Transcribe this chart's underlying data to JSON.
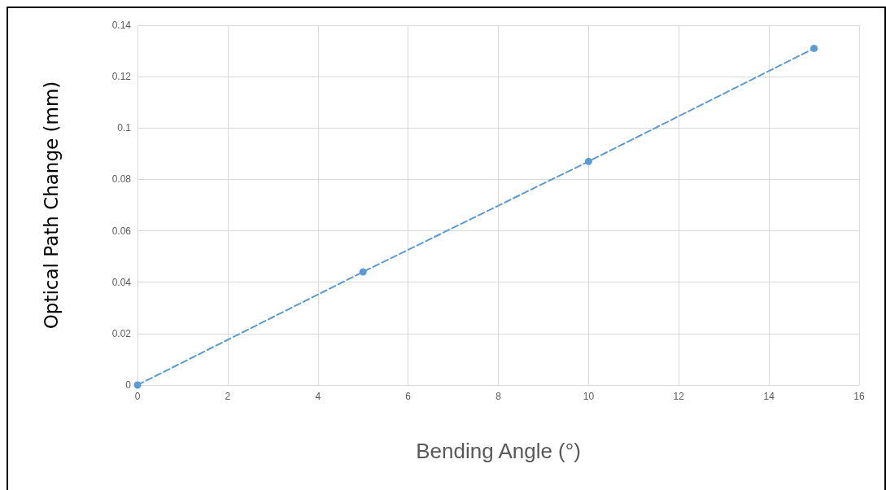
{
  "chart_data": {
    "type": "line",
    "xlabel": "Bending Angle (°)",
    "ylabel": "Optical Path Change (mm)",
    "x": [
      0,
      5,
      10,
      15
    ],
    "series": [
      {
        "color": "#5b9bd5",
        "values": [
          0,
          0.044,
          0.087,
          0.131
        ]
      }
    ],
    "xlim": [
      0,
      16
    ],
    "xticks": [
      0,
      2,
      4,
      6,
      8,
      10,
      12,
      14,
      16
    ],
    "ylim": [
      0,
      0.14
    ],
    "yticks": [
      0,
      0.02,
      0.04,
      0.06,
      0.08,
      0.1,
      0.12,
      0.14
    ],
    "grid": true,
    "marker": "circle",
    "line_style": "dashed"
  }
}
